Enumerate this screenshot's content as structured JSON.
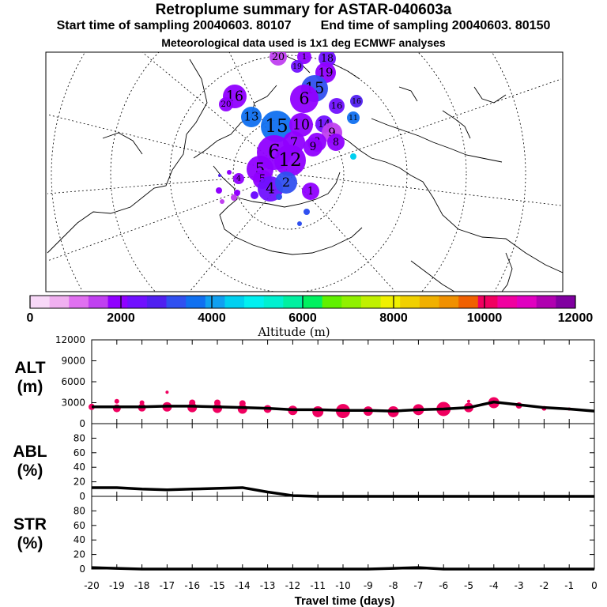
{
  "header": {
    "title": "Retroplume summary for ASTAR-040603a",
    "start_label": "Start time of sampling 20040603. 80107",
    "end_label": "End time of sampling 20040603. 80150",
    "met_label": "Meteorological data used is 1x1 deg ECMWF analyses"
  },
  "map": {
    "description_name": "polar-stereographic-map",
    "label_numbers": [
      "20",
      "1",
      "18",
      "19",
      "19",
      "16",
      "20",
      "15",
      "16",
      "16",
      "13",
      "15",
      "11",
      "14",
      "6",
      "10",
      "9",
      "8",
      "7",
      "8",
      "9",
      "6",
      "12",
      "5",
      "5",
      "4",
      "2",
      "1",
      "4"
    ]
  },
  "colorbar": {
    "colors": [
      "#f8d8f8",
      "#f0b0f0",
      "#e070f0",
      "#c040f0",
      "#9000ff",
      "#7010ff",
      "#5020f0",
      "#3050f0",
      "#1070f0",
      "#10a0f0",
      "#00d0f0",
      "#00f0f0",
      "#00f0d0",
      "#00f0a0",
      "#00f060",
      "#60f000",
      "#90f000",
      "#c0f000",
      "#f0f000",
      "#f0d000",
      "#f0b000",
      "#f09000",
      "#f06000",
      "#f00060",
      "#f000a0",
      "#e000c0",
      "#b000b0",
      "#8000a0"
    ],
    "ticks": [
      "0",
      "2000",
      "4000",
      "6000",
      "8000",
      "10000",
      "12000"
    ],
    "label": "Altitude (m)"
  },
  "chart_data": [
    {
      "type": "line",
      "name": "ALT",
      "ylabel": "ALT\n(m)",
      "ylabel_lines": [
        "ALT",
        "(m)"
      ],
      "ylim": [
        0,
        12000
      ],
      "yticks": [
        "0",
        "3000",
        "6000",
        "9000",
        "12000"
      ],
      "x": [
        -20,
        -19,
        -18,
        -17,
        -16,
        -15,
        -14,
        -13,
        -12,
        -11,
        -10,
        -9,
        -8,
        -7,
        -6,
        -5,
        -4,
        -3,
        -2,
        -1,
        0
      ],
      "values": [
        2400,
        2400,
        2400,
        2500,
        2500,
        2400,
        2300,
        2200,
        2000,
        2000,
        1900,
        1900,
        1800,
        2000,
        2100,
        2300,
        3100,
        2700,
        2300,
        2100,
        1800
      ],
      "bubbles": [
        {
          "x": -20,
          "y": 2400,
          "r": 4
        },
        {
          "x": -19,
          "y": 2200,
          "r": 5
        },
        {
          "x": -19,
          "y": 3200,
          "r": 3
        },
        {
          "x": -18,
          "y": 2300,
          "r": 5
        },
        {
          "x": -18,
          "y": 3000,
          "r": 3
        },
        {
          "x": -17,
          "y": 2400,
          "r": 6
        },
        {
          "x": -17,
          "y": 4500,
          "r": 2
        },
        {
          "x": -16,
          "y": 2300,
          "r": 6
        },
        {
          "x": -16,
          "y": 3000,
          "r": 4
        },
        {
          "x": -15,
          "y": 2200,
          "r": 6
        },
        {
          "x": -15,
          "y": 3000,
          "r": 4
        },
        {
          "x": -14,
          "y": 2100,
          "r": 6
        },
        {
          "x": -14,
          "y": 2900,
          "r": 4
        },
        {
          "x": -13,
          "y": 2100,
          "r": 5
        },
        {
          "x": -12,
          "y": 1900,
          "r": 6
        },
        {
          "x": -11,
          "y": 1700,
          "r": 7
        },
        {
          "x": -10,
          "y": 1800,
          "r": 9
        },
        {
          "x": -9,
          "y": 1800,
          "r": 6
        },
        {
          "x": -8,
          "y": 1700,
          "r": 7
        },
        {
          "x": -7,
          "y": 2000,
          "r": 7
        },
        {
          "x": -6,
          "y": 2100,
          "r": 9
        },
        {
          "x": -5,
          "y": 2300,
          "r": 6
        },
        {
          "x": -5,
          "y": 3200,
          "r": 2
        },
        {
          "x": -4,
          "y": 3000,
          "r": 7
        },
        {
          "x": -3,
          "y": 2600,
          "r": 4
        },
        {
          "x": -2,
          "y": 2200,
          "r": 3
        },
        {
          "x": -1,
          "y": 2100,
          "r": 2
        }
      ]
    },
    {
      "type": "line",
      "name": "ABL",
      "ylabel": "ABL\n(%)",
      "ylabel_lines": [
        "ABL",
        "(%)"
      ],
      "ylim": [
        0,
        100
      ],
      "yticks": [
        "0",
        "20",
        "40",
        "60",
        "80"
      ],
      "x": [
        -20,
        -19,
        -18,
        -17,
        -16,
        -15,
        -14,
        -13,
        -12,
        -11,
        -10,
        -9,
        -8,
        -7,
        -6,
        -5,
        -4,
        -3,
        -2,
        -1,
        0
      ],
      "values": [
        12,
        12,
        10,
        9,
        10,
        11,
        12,
        6,
        1,
        0,
        0,
        0,
        0,
        0,
        0,
        0,
        0,
        0,
        0,
        0,
        0
      ]
    },
    {
      "type": "line",
      "name": "STR",
      "ylabel": "STR\n(%)",
      "ylabel_lines": [
        "STR",
        "(%)"
      ],
      "ylim": [
        0,
        100
      ],
      "yticks": [
        "0",
        "20",
        "40",
        "60",
        "80"
      ],
      "x": [
        -20,
        -19,
        -18,
        -17,
        -16,
        -15,
        -14,
        -13,
        -12,
        -11,
        -10,
        -9,
        -8,
        -7,
        -6,
        -5,
        -4,
        -3,
        -2,
        -1,
        0
      ],
      "values": [
        2,
        1,
        0,
        0,
        0,
        0,
        0,
        0,
        0,
        0,
        0,
        0,
        1,
        2,
        0,
        0,
        0,
        0,
        0,
        0,
        0
      ]
    }
  ],
  "xaxis": {
    "ticks": [
      "-20",
      "-19",
      "-18",
      "-17",
      "-16",
      "-15",
      "-14",
      "-13",
      "-12",
      "-11",
      "-10",
      "-9",
      "-8",
      "-7",
      "-6",
      "-5",
      "-4",
      "-3",
      "-2",
      "-1",
      "0"
    ],
    "label": "Travel time (days)"
  }
}
